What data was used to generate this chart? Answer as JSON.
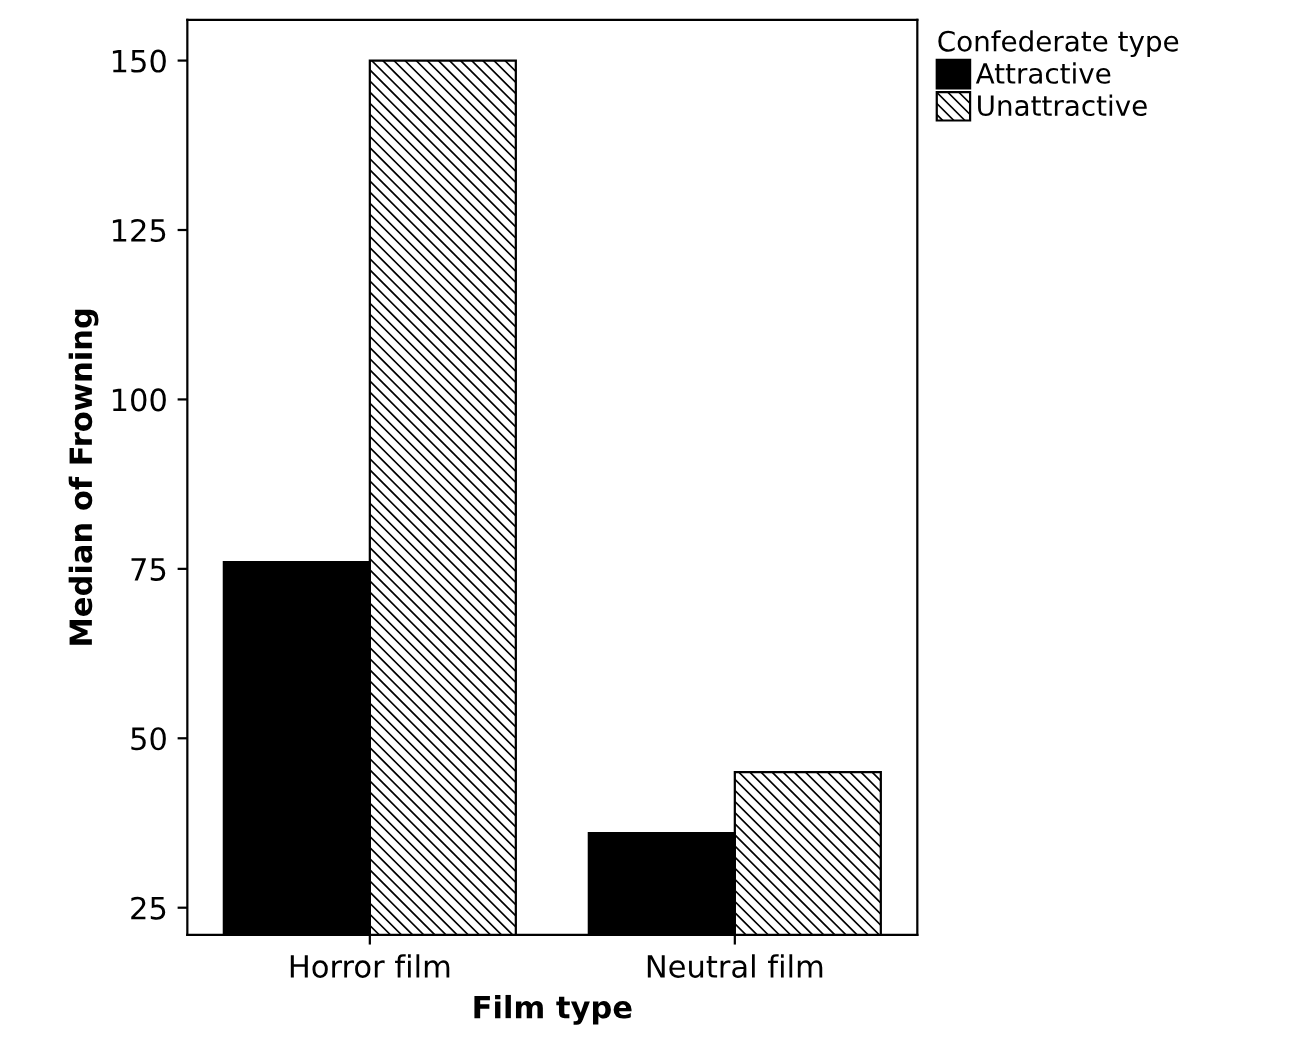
{
  "chart_data": {
    "type": "bar",
    "xlabel": "Film type",
    "ylabel": "Median of Frowning",
    "legend_title": "Confederate type",
    "categories": [
      "Horror film",
      "Neutral film"
    ],
    "series": [
      {
        "name": "Attractive",
        "color": "#000000",
        "values": [
          76,
          36
        ]
      },
      {
        "name": "Unattractive",
        "color": "#000000",
        "values": [
          150,
          45
        ]
      }
    ],
    "ylim": [
      21,
      156
    ],
    "yticks": [
      25,
      50,
      75,
      100,
      125,
      150
    ],
    "grid": false,
    "legend": "top right"
  }
}
